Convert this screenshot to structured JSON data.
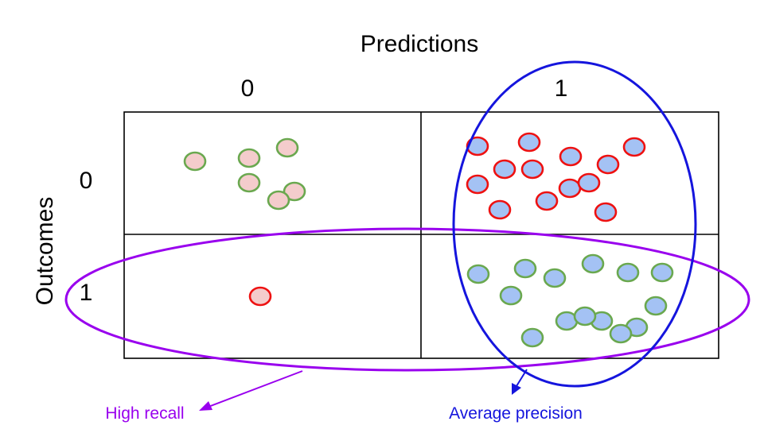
{
  "title": "Predictions",
  "column_headers": [
    "0",
    "1"
  ],
  "row_headers": [
    "0",
    "1"
  ],
  "y_axis_label": "Outcomes",
  "annotations": {
    "recall": {
      "label": "High recall",
      "color": "#9900ee"
    },
    "precision": {
      "label": "Average precision",
      "color": "#1515dd"
    }
  },
  "colors": {
    "pink_fill": "#f4cccc",
    "blue_fill": "#a4c2f4",
    "red_outline": "#ee1111",
    "green_outline": "#6aa84f",
    "grid": "#000000"
  },
  "cells": {
    "outcome0_pred0": {
      "count": 6,
      "fill": "pink",
      "outline": "green"
    },
    "outcome0_pred1": {
      "count": 13,
      "fill": "blue",
      "outline": "red"
    },
    "outcome1_pred0": {
      "count": 1,
      "fill": "pink",
      "outline": "red"
    },
    "outcome1_pred1": {
      "count": 14,
      "fill": "blue",
      "outline": "green"
    }
  }
}
